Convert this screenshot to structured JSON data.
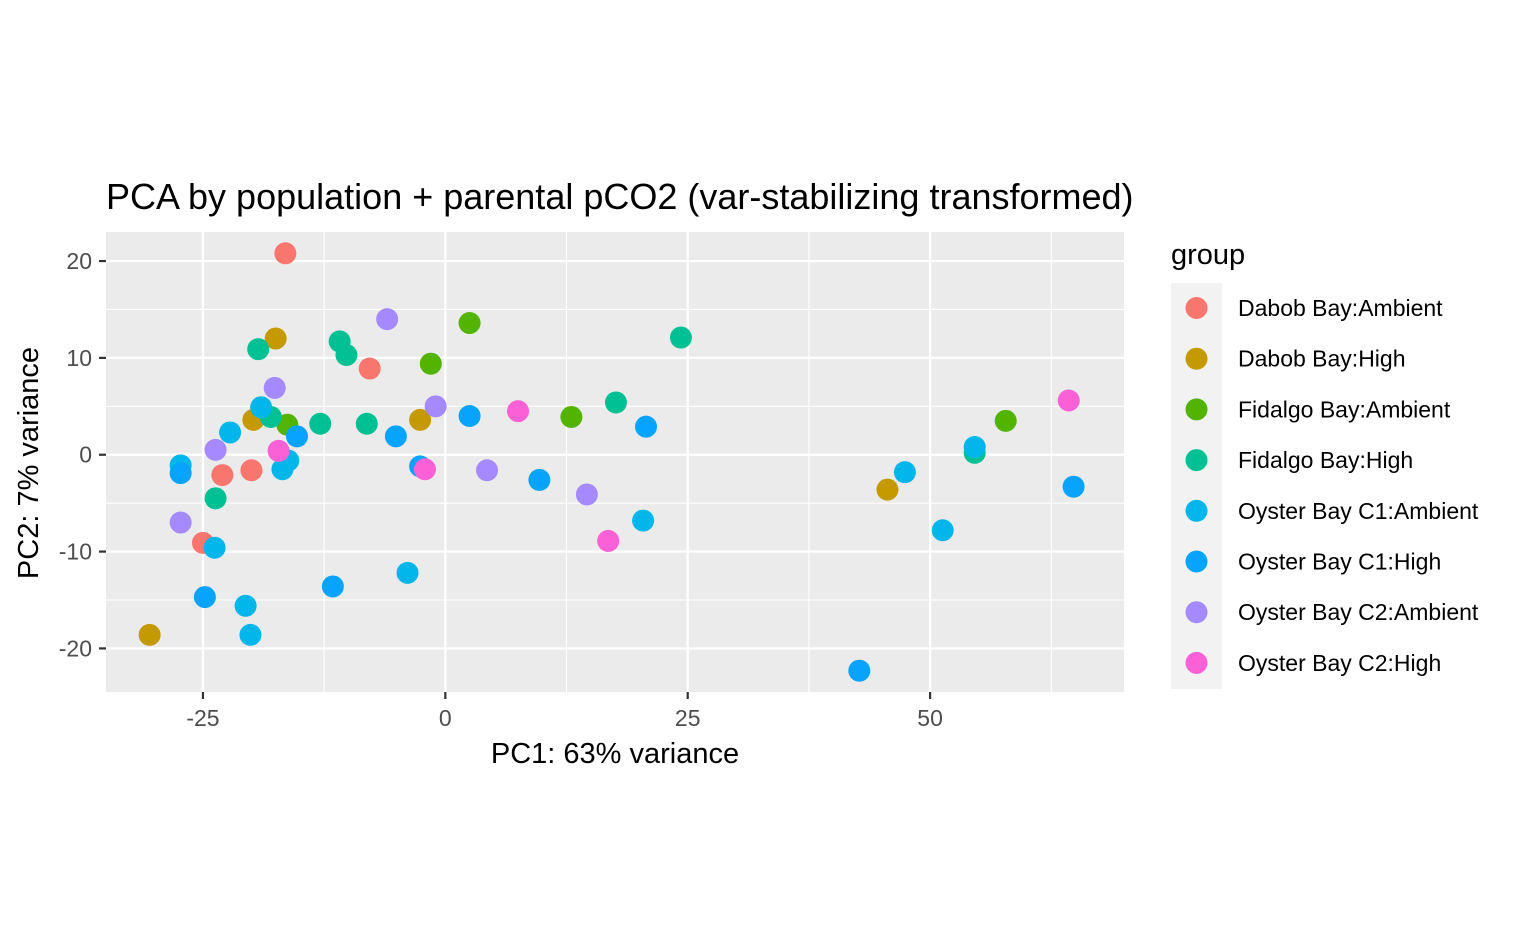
{
  "chart_data": {
    "type": "scatter",
    "title": "PCA by population + parental pCO2 (var-stabilizing transformed)",
    "xlabel": "PC1: 63% variance",
    "ylabel": "PC2: 7% variance",
    "xlim": [
      -35,
      70
    ],
    "ylim": [
      -24.5,
      23
    ],
    "x_ticks": [
      -25,
      0,
      25,
      50
    ],
    "y_ticks": [
      -20,
      -10,
      0,
      10,
      20
    ],
    "x_minor": [
      -12.5,
      12.5,
      37.5,
      62.5
    ],
    "y_minor": [
      -15,
      -5,
      5,
      15
    ],
    "grid": true,
    "legend": {
      "title": "group",
      "position": "right"
    },
    "series": [
      {
        "name": "Dabob Bay:Ambient",
        "color": "#F8766D",
        "points": [
          [
            -16.5,
            20.8
          ],
          [
            -7.8,
            8.9
          ],
          [
            -20,
            -1.6
          ],
          [
            -23,
            -2.1
          ],
          [
            -25,
            -9.1
          ]
        ]
      },
      {
        "name": "Dabob Bay:High",
        "color": "#C49A00",
        "points": [
          [
            -17.5,
            12
          ],
          [
            -19.8,
            3.6
          ],
          [
            -2.6,
            3.6
          ],
          [
            45.6,
            -3.6
          ],
          [
            -30.5,
            -18.6
          ]
        ]
      },
      {
        "name": "Fidalgo Bay:Ambient",
        "color": "#53B400",
        "points": [
          [
            2.5,
            13.6
          ],
          [
            -1.5,
            9.4
          ],
          [
            13,
            3.9
          ],
          [
            57.8,
            3.5
          ],
          [
            -16.3,
            3.1
          ]
        ]
      },
      {
        "name": "Fidalgo Bay:High",
        "color": "#00C094",
        "points": [
          [
            -19.3,
            10.9
          ],
          [
            -10.9,
            11.7
          ],
          [
            -10.2,
            10.3
          ],
          [
            -12.9,
            3.2
          ],
          [
            -8.1,
            3.2
          ],
          [
            17.6,
            5.4
          ],
          [
            24.3,
            12.1
          ],
          [
            54.6,
            0.2
          ],
          [
            -23.7,
            -4.5
          ],
          [
            -18,
            3.9
          ]
        ]
      },
      {
        "name": "Oyster Bay C1:Ambient",
        "color": "#00B6EB",
        "points": [
          [
            -19,
            4.9
          ],
          [
            -22.2,
            2.3
          ],
          [
            -27.3,
            -1.1
          ],
          [
            -16.2,
            -0.6
          ],
          [
            -16.8,
            -1.5
          ],
          [
            -23.8,
            -9.6
          ],
          [
            -20.6,
            -15.6
          ],
          [
            -20.1,
            -18.6
          ],
          [
            -3.9,
            -12.2
          ],
          [
            20.4,
            -6.8
          ],
          [
            47.4,
            -1.8
          ],
          [
            51.3,
            -7.8
          ],
          [
            54.6,
            0.8
          ]
        ]
      },
      {
        "name": "Oyster Bay C1:High",
        "color": "#06A4FF",
        "points": [
          [
            -15.3,
            1.9
          ],
          [
            -5.1,
            1.9
          ],
          [
            -2.6,
            -1.2
          ],
          [
            2.5,
            4
          ],
          [
            9.7,
            -2.6
          ],
          [
            20.7,
            2.9
          ],
          [
            -27.3,
            -1.9
          ],
          [
            -24.8,
            -14.7
          ],
          [
            -11.6,
            -13.6
          ],
          [
            42.7,
            -22.3
          ],
          [
            64.8,
            -3.3
          ]
        ]
      },
      {
        "name": "Oyster Bay C2:Ambient",
        "color": "#A58AFF",
        "points": [
          [
            -6,
            14
          ],
          [
            -17.6,
            6.9
          ],
          [
            -1,
            5
          ],
          [
            -23.7,
            0.5
          ],
          [
            4.3,
            -1.6
          ],
          [
            14.6,
            -4.1
          ],
          [
            -27.3,
            -7
          ]
        ]
      },
      {
        "name": "Oyster Bay C2:High",
        "color": "#FB61D7",
        "points": [
          [
            7.5,
            4.5
          ],
          [
            -17.2,
            0.4
          ],
          [
            -2.1,
            -1.5
          ],
          [
            16.8,
            -8.9
          ],
          [
            64.3,
            5.6
          ]
        ]
      }
    ]
  }
}
